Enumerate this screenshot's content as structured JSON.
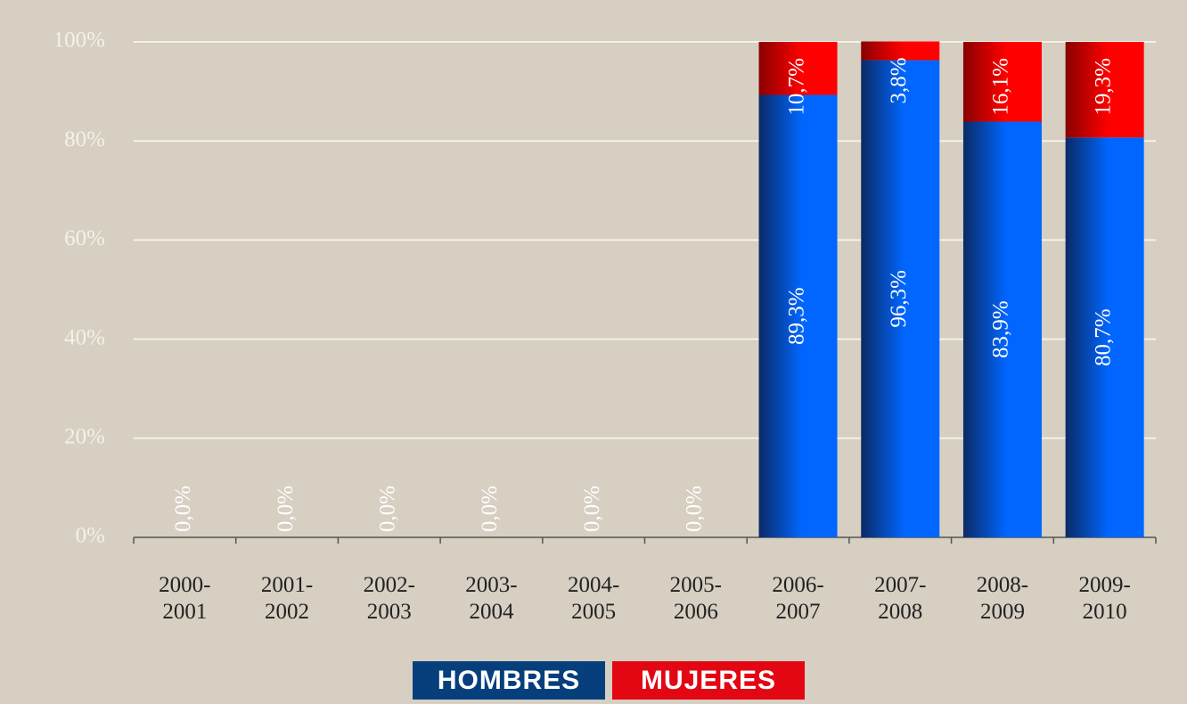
{
  "chart_data": {
    "type": "stacked_bar",
    "categories": [
      "2000-2001",
      "2001-2002",
      "2002-2003",
      "2003-2004",
      "2004-2005",
      "2005-2006",
      "2006-2007",
      "2007-2008",
      "2008-2009",
      "2009-2010"
    ],
    "series": [
      {
        "name": "HOMBRES",
        "color": "#0066ff",
        "legend_color": "#063f7c",
        "values": [
          0,
          0,
          0,
          0,
          0,
          0,
          89.3,
          96.3,
          83.9,
          80.7
        ],
        "value_labels": [
          "0,0%",
          "0,0%",
          "0,0%",
          "0,0%",
          "0,0%",
          "0,0%",
          "89,3%",
          "96,3%",
          "83,9%",
          "80,7%"
        ]
      },
      {
        "name": "MUJERES",
        "color": "#ff0000",
        "legend_color": "#e30613",
        "values": [
          0,
          0,
          0,
          0,
          0,
          0,
          10.7,
          3.8,
          16.1,
          19.3
        ],
        "value_labels": [
          null,
          null,
          null,
          null,
          null,
          null,
          "10,7%",
          "3,8%",
          "16,1%",
          "19,3%"
        ]
      }
    ],
    "ylim": [
      0,
      100
    ],
    "yticks": [
      {
        "value": 0,
        "label": "0%"
      },
      {
        "value": 20,
        "label": "20%"
      },
      {
        "value": 40,
        "label": "40%"
      },
      {
        "value": 60,
        "label": "60%"
      },
      {
        "value": 80,
        "label": "80%"
      },
      {
        "value": 100,
        "label": "100%"
      }
    ],
    "grid": true
  }
}
